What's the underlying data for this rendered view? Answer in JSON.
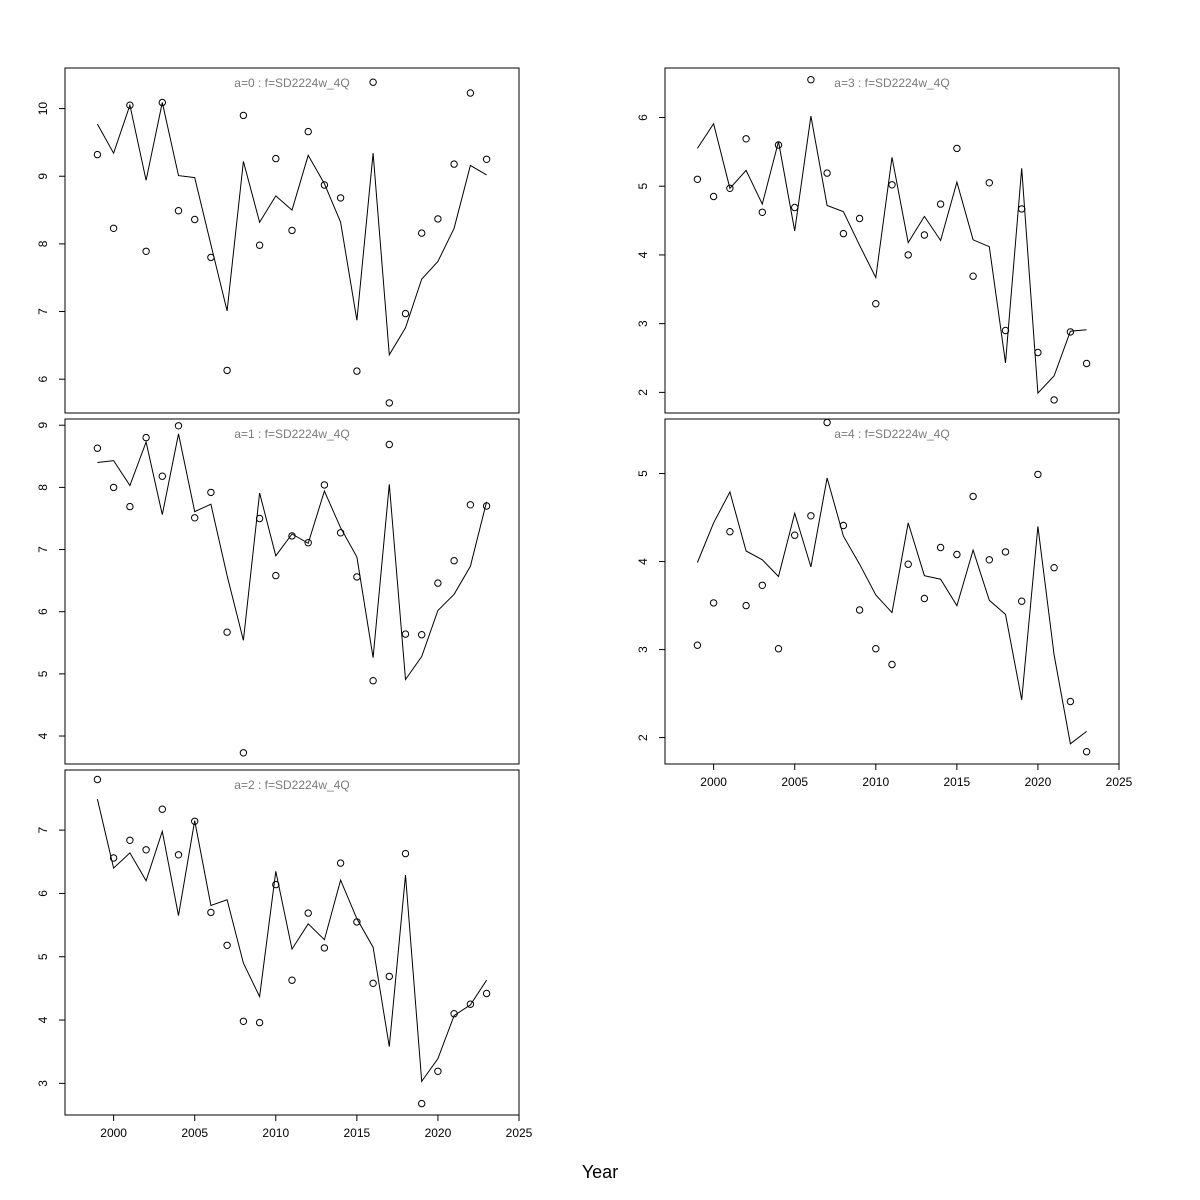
{
  "chart_data": {
    "type": "scatter",
    "xlabel": "Year",
    "xlim": [
      1997,
      2025
    ],
    "x_ticks": [
      2000,
      2005,
      2010,
      2015,
      2020,
      2025
    ],
    "years": [
      1999,
      2000,
      2001,
      2002,
      2003,
      2004,
      2005,
      2006,
      2007,
      2008,
      2009,
      2010,
      2011,
      2012,
      2013,
      2014,
      2015,
      2016,
      2017,
      2018,
      2019,
      2020,
      2021,
      2022,
      2023
    ],
    "panels": [
      {
        "title": "a=0  :  f=SD2224w_4Q",
        "ylim": [
          5.5,
          10.6
        ],
        "y_ticks": [
          6,
          7,
          8,
          9,
          10
        ],
        "observed": [
          9.32,
          8.23,
          10.05,
          7.89,
          10.09,
          8.49,
          8.36,
          7.8,
          6.13,
          9.9,
          7.98,
          9.26,
          8.2,
          9.66,
          8.87,
          8.68,
          6.12,
          10.39,
          5.65,
          6.97,
          8.16,
          8.37,
          9.18,
          10.23,
          9.25
        ],
        "fitted": [
          9.77,
          9.34,
          10.05,
          8.94,
          10.09,
          9.01,
          8.98,
          7.99,
          7.01,
          9.22,
          8.32,
          8.71,
          8.5,
          9.31,
          8.89,
          8.32,
          6.87,
          9.34,
          6.36,
          6.76,
          7.48,
          7.74,
          8.23,
          9.16,
          9.02
        ]
      },
      {
        "title": "a=1  :  f=SD2224w_4Q",
        "ylim": [
          3.55,
          9.1
        ],
        "y_ticks": [
          4,
          5,
          6,
          7,
          8,
          9
        ],
        "observed": [
          8.63,
          8.0,
          7.69,
          8.8,
          8.18,
          8.99,
          7.51,
          7.92,
          5.67,
          3.73,
          7.5,
          6.58,
          7.22,
          7.11,
          8.04,
          7.27,
          6.56,
          4.89,
          8.69,
          5.64,
          5.63,
          6.46,
          6.82,
          7.72,
          7.7
        ],
        "fitted": [
          8.4,
          8.43,
          8.03,
          8.73,
          7.56,
          8.86,
          7.61,
          7.73,
          6.58,
          5.54,
          7.91,
          6.9,
          7.25,
          7.1,
          7.94,
          7.35,
          6.88,
          5.26,
          8.05,
          4.91,
          5.28,
          6.02,
          6.28,
          6.73,
          7.77
        ]
      },
      {
        "title": "a=2  :  f=SD2224w_4Q",
        "ylim": [
          2.5,
          7.95
        ],
        "y_ticks": [
          3,
          4,
          5,
          6,
          7
        ],
        "observed": [
          7.8,
          6.56,
          6.84,
          6.69,
          7.33,
          6.61,
          7.14,
          5.7,
          5.18,
          3.98,
          3.96,
          6.14,
          4.63,
          5.69,
          5.14,
          6.48,
          5.55,
          4.58,
          4.69,
          6.63,
          2.68,
          3.19,
          4.1,
          4.25,
          4.42
        ],
        "fitted": [
          7.49,
          6.4,
          6.64,
          6.2,
          6.98,
          5.65,
          7.15,
          5.81,
          5.9,
          4.9,
          4.37,
          6.35,
          5.12,
          5.52,
          5.27,
          6.21,
          5.6,
          5.15,
          3.58,
          6.29,
          3.03,
          3.39,
          4.07,
          4.24,
          4.63
        ]
      },
      {
        "title": "a=3  :  f=SD2224w_4Q",
        "ylim": [
          1.7,
          6.72
        ],
        "y_ticks": [
          2,
          3,
          4,
          5,
          6
        ],
        "observed": [
          5.1,
          4.85,
          4.97,
          5.69,
          4.62,
          5.6,
          4.69,
          6.55,
          5.19,
          4.31,
          4.53,
          3.29,
          5.02,
          4.0,
          4.29,
          4.74,
          5.55,
          3.69,
          5.05,
          2.9,
          4.67,
          2.58,
          1.89,
          2.88,
          2.42
        ],
        "fitted": [
          5.55,
          5.91,
          4.97,
          5.23,
          4.74,
          5.65,
          4.35,
          6.02,
          4.72,
          4.63,
          4.14,
          3.67,
          5.42,
          4.18,
          4.56,
          4.21,
          5.06,
          4.22,
          4.12,
          2.43,
          5.26,
          1.99,
          2.24,
          2.89,
          2.91
        ]
      },
      {
        "title": "a=4  :  f=SD2224w_4Q",
        "ylim": [
          1.7,
          5.62
        ],
        "y_ticks": [
          2,
          3,
          4,
          5
        ],
        "observed": [
          3.05,
          3.53,
          4.34,
          3.5,
          3.73,
          3.01,
          4.3,
          4.52,
          5.58,
          4.41,
          3.45,
          3.01,
          2.83,
          3.97,
          3.58,
          4.16,
          4.08,
          4.74,
          4.02,
          4.11,
          3.55,
          4.99,
          3.93,
          2.41,
          1.84
        ],
        "fitted": [
          3.99,
          4.44,
          4.79,
          4.12,
          4.02,
          3.83,
          4.55,
          3.94,
          4.95,
          4.29,
          3.97,
          3.62,
          3.42,
          4.44,
          3.84,
          3.8,
          3.5,
          4.13,
          3.56,
          3.4,
          2.43,
          4.4,
          2.94,
          1.93,
          2.07
        ]
      }
    ]
  }
}
